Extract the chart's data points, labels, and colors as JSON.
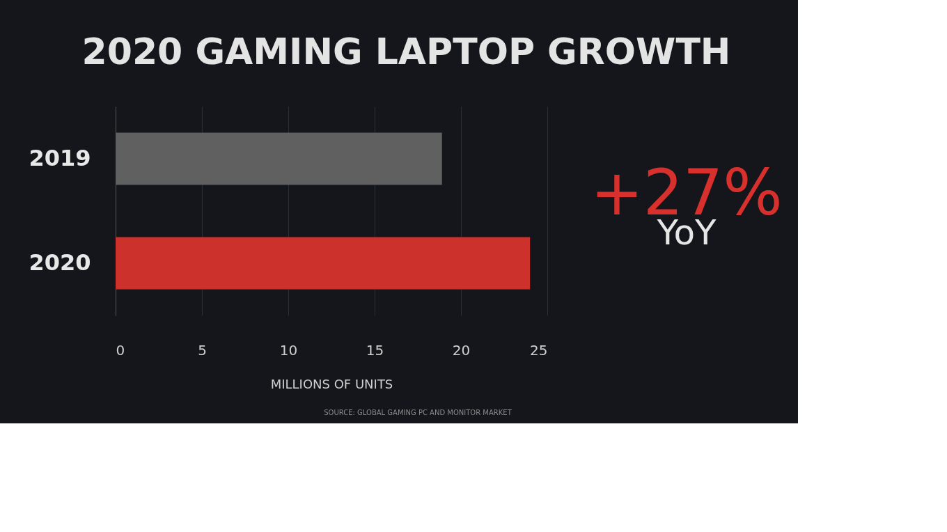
{
  "chart_data": {
    "type": "bar",
    "orientation": "horizontal",
    "title": "2020 GAMING LAPTOP GROWTH",
    "categories": [
      "2019",
      "2020"
    ],
    "values": [
      18.9,
      24.0
    ],
    "colors": [
      "#606060",
      "#cc312b"
    ],
    "xlim": [
      0,
      25
    ],
    "xticks": [
      0,
      5,
      10,
      15,
      20,
      25
    ],
    "xlabel": "MILLIONS OF UNITS",
    "grid": "x",
    "annotations": [
      "+27%",
      "YoY",
      "SOURCE: GLOBAL GAMING PC AND MONITOR MARKET"
    ]
  }
}
